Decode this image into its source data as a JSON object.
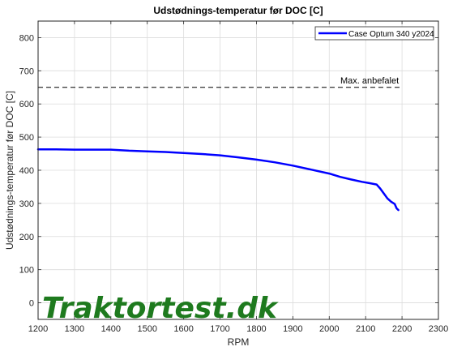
{
  "chart_data": {
    "type": "line",
    "title": "Udstødnings-temperatur før DOC [C]",
    "xlabel": "RPM",
    "ylabel": "Udstødnings-temperatur før DOC [C]",
    "xlim": [
      1200,
      2300
    ],
    "ylim": [
      -50,
      850
    ],
    "xticks": [
      1200,
      1300,
      1400,
      1500,
      1600,
      1700,
      1800,
      1900,
      2000,
      2100,
      2200,
      2300
    ],
    "yticks": [
      0,
      100,
      200,
      300,
      400,
      500,
      600,
      700,
      800
    ],
    "grid": true,
    "legend_position": "top-right",
    "series": [
      {
        "name": "Case Optum 340 y2024",
        "color": "#0000ff",
        "x": [
          1200,
          1250,
          1300,
          1350,
          1400,
          1420,
          1450,
          1500,
          1550,
          1600,
          1650,
          1700,
          1750,
          1800,
          1850,
          1900,
          1950,
          2000,
          2030,
          2060,
          2090,
          2110,
          2130,
          2140,
          2150,
          2160,
          2170,
          2180,
          2185,
          2190
        ],
        "y": [
          463,
          463,
          462,
          462,
          462,
          461,
          459,
          457,
          455,
          452,
          449,
          445,
          439,
          432,
          424,
          414,
          402,
          390,
          380,
          372,
          365,
          361,
          357,
          345,
          330,
          315,
          305,
          298,
          285,
          280
        ]
      }
    ],
    "reference_line": {
      "y": 650,
      "label": "Max. anbefalet",
      "color": "#000000"
    }
  },
  "watermark": {
    "text": "Traktortest.dk",
    "color": "#1e7a1e"
  }
}
